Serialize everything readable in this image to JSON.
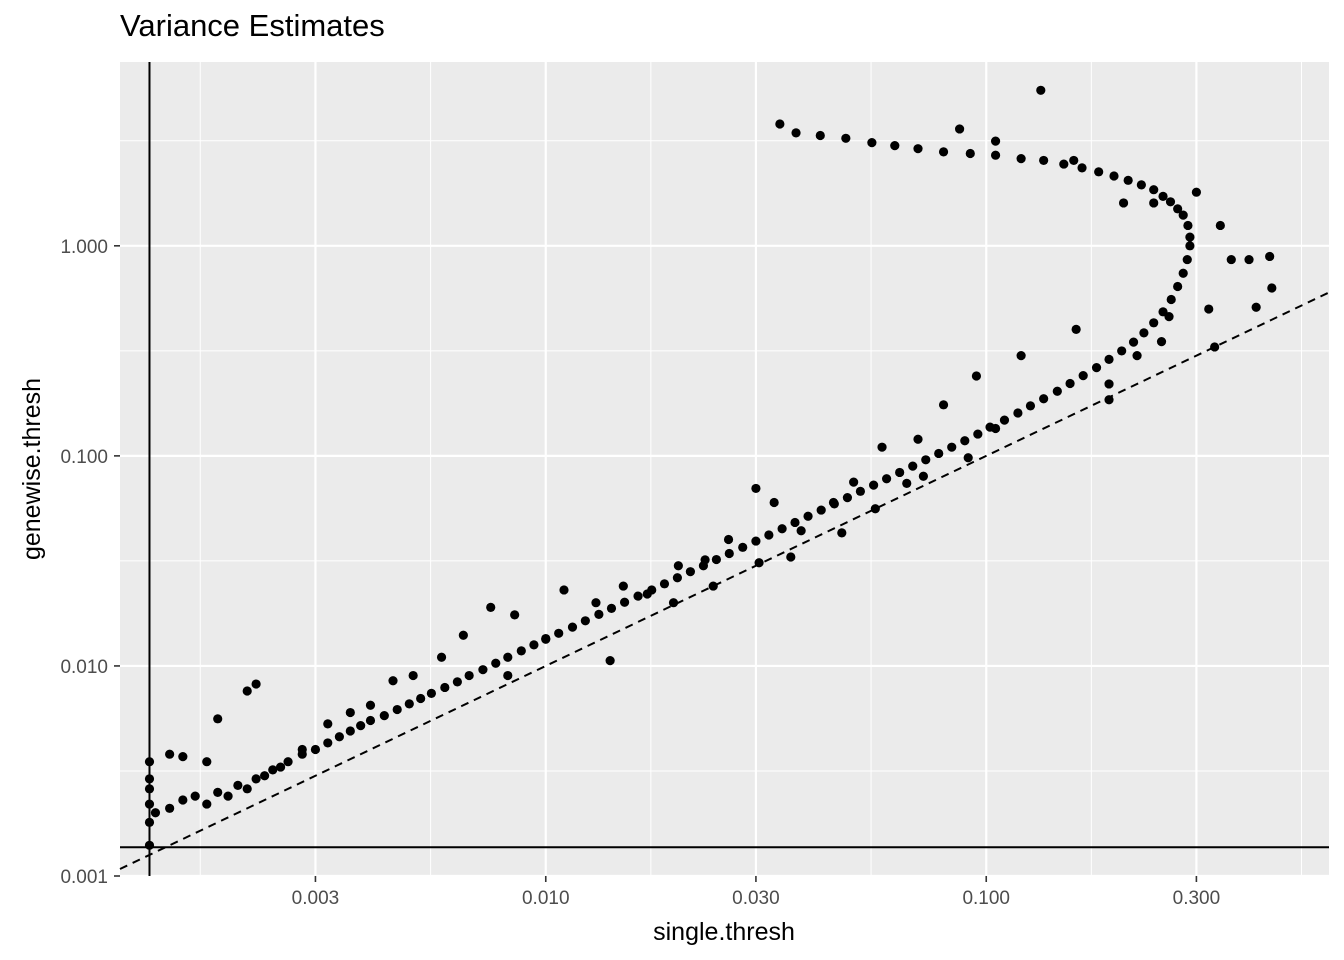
{
  "chart_data": {
    "type": "scatter",
    "title": "Variance Estimates",
    "xlabel": "single.thresh",
    "ylabel": "genewise.thresh",
    "x_scale": "log10",
    "y_scale": "log10",
    "xlim": [
      0.00108,
      0.6
    ],
    "ylim": [
      0.001,
      7.5
    ],
    "x_ticks": [
      0.003,
      0.01,
      0.03,
      0.1,
      0.3
    ],
    "x_tick_labels": [
      "0.003",
      "0.010",
      "0.030",
      "0.100",
      "0.300"
    ],
    "y_ticks": [
      0.001,
      0.01,
      0.1,
      1.0
    ],
    "y_tick_labels": [
      "0.001",
      "0.010",
      "0.100",
      "1.000"
    ],
    "grid": true,
    "reference_lines": {
      "vline_x": 0.00126,
      "hline_y": 0.00137,
      "identity_dashed": true
    },
    "series": [
      {
        "values": [
          [
            0.00126,
            0.0014
          ],
          [
            0.00126,
            0.0018
          ],
          [
            0.00126,
            0.0022
          ],
          [
            0.00126,
            0.0026
          ],
          [
            0.00126,
            0.0029
          ],
          [
            0.00126,
            0.0035
          ],
          [
            0.0013,
            0.002
          ],
          [
            0.0014,
            0.0021
          ],
          [
            0.0015,
            0.0023
          ],
          [
            0.0016,
            0.0024
          ],
          [
            0.0017,
            0.0022
          ],
          [
            0.0018,
            0.0025
          ],
          [
            0.0019,
            0.0024
          ],
          [
            0.002,
            0.0027
          ],
          [
            0.0021,
            0.0026
          ],
          [
            0.0022,
            0.0029
          ],
          [
            0.0023,
            0.003
          ],
          [
            0.0024,
            0.0032
          ],
          [
            0.0025,
            0.0033
          ],
          [
            0.0026,
            0.0035
          ],
          [
            0.0028,
            0.0038
          ],
          [
            0.003,
            0.004
          ],
          [
            0.0032,
            0.0043
          ],
          [
            0.0034,
            0.0046
          ],
          [
            0.0036,
            0.0049
          ],
          [
            0.0038,
            0.0052
          ],
          [
            0.004,
            0.0055
          ],
          [
            0.0043,
            0.0058
          ],
          [
            0.0046,
            0.0062
          ],
          [
            0.0049,
            0.0066
          ],
          [
            0.0052,
            0.007
          ],
          [
            0.0055,
            0.0074
          ],
          [
            0.0059,
            0.0079
          ],
          [
            0.0063,
            0.0084
          ],
          [
            0.0067,
            0.009
          ],
          [
            0.0072,
            0.0096
          ],
          [
            0.0077,
            0.0103
          ],
          [
            0.0082,
            0.011
          ],
          [
            0.0088,
            0.0118
          ],
          [
            0.0094,
            0.0126
          ],
          [
            0.01,
            0.0134
          ],
          [
            0.0107,
            0.0143
          ],
          [
            0.0115,
            0.0153
          ],
          [
            0.0123,
            0.0164
          ],
          [
            0.0132,
            0.0176
          ],
          [
            0.0141,
            0.0188
          ],
          [
            0.0151,
            0.0201
          ],
          [
            0.0162,
            0.0215
          ],
          [
            0.0174,
            0.023
          ],
          [
            0.0186,
            0.0246
          ],
          [
            0.0199,
            0.0263
          ],
          [
            0.0213,
            0.0281
          ],
          [
            0.0228,
            0.03
          ],
          [
            0.0244,
            0.0321
          ],
          [
            0.0261,
            0.0343
          ],
          [
            0.028,
            0.0367
          ],
          [
            0.03,
            0.0393
          ],
          [
            0.0321,
            0.042
          ],
          [
            0.0344,
            0.045
          ],
          [
            0.0368,
            0.0482
          ],
          [
            0.0394,
            0.0516
          ],
          [
            0.0422,
            0.0552
          ],
          [
            0.0452,
            0.0591
          ],
          [
            0.0484,
            0.0633
          ],
          [
            0.0518,
            0.0678
          ],
          [
            0.0555,
            0.0726
          ],
          [
            0.0594,
            0.0778
          ],
          [
            0.0636,
            0.0834
          ],
          [
            0.0681,
            0.0894
          ],
          [
            0.0729,
            0.0958
          ],
          [
            0.078,
            0.1027
          ],
          [
            0.0835,
            0.11
          ],
          [
            0.0894,
            0.118
          ],
          [
            0.0957,
            0.127
          ],
          [
            0.102,
            0.137
          ],
          [
            0.11,
            0.148
          ],
          [
            0.118,
            0.16
          ],
          [
            0.126,
            0.173
          ],
          [
            0.135,
            0.187
          ],
          [
            0.145,
            0.203
          ],
          [
            0.155,
            0.221
          ],
          [
            0.166,
            0.241
          ],
          [
            0.178,
            0.263
          ],
          [
            0.19,
            0.288
          ],
          [
            0.203,
            0.316
          ],
          [
            0.216,
            0.348
          ],
          [
            0.228,
            0.385
          ],
          [
            0.24,
            0.43
          ],
          [
            0.252,
            0.485
          ],
          [
            0.263,
            0.555
          ],
          [
            0.272,
            0.64
          ],
          [
            0.28,
            0.74
          ],
          [
            0.286,
            0.86
          ],
          [
            0.29,
            1.0
          ],
          [
            0.29,
            1.1
          ],
          [
            0.287,
            1.25
          ],
          [
            0.28,
            1.4
          ],
          [
            0.272,
            1.5
          ],
          [
            0.262,
            1.62
          ],
          [
            0.252,
            1.72
          ],
          [
            0.24,
            1.85
          ],
          [
            0.225,
            1.95
          ],
          [
            0.21,
            2.05
          ],
          [
            0.195,
            2.15
          ],
          [
            0.18,
            2.25
          ],
          [
            0.165,
            2.35
          ],
          [
            0.15,
            2.45
          ],
          [
            0.135,
            2.55
          ],
          [
            0.12,
            2.6
          ],
          [
            0.105,
            2.7
          ],
          [
            0.092,
            2.75
          ],
          [
            0.08,
            2.8
          ],
          [
            0.07,
            2.9
          ],
          [
            0.062,
            3.0
          ],
          [
            0.055,
            3.1
          ],
          [
            0.048,
            3.25
          ],
          [
            0.042,
            3.35
          ],
          [
            0.037,
            3.45
          ],
          [
            0.034,
            3.8
          ],
          [
            0.133,
            5.5
          ],
          [
            0.087,
            3.6
          ],
          [
            0.105,
            3.15
          ],
          [
            0.158,
            2.55
          ],
          [
            0.205,
            1.6
          ],
          [
            0.24,
            1.6
          ],
          [
            0.3,
            1.8
          ],
          [
            0.34,
            1.25
          ],
          [
            0.36,
            0.86
          ],
          [
            0.395,
            0.86
          ],
          [
            0.44,
            0.89
          ],
          [
            0.445,
            0.63
          ],
          [
            0.41,
            0.51
          ],
          [
            0.32,
            0.5
          ],
          [
            0.33,
            0.33
          ],
          [
            0.26,
            0.46
          ],
          [
            0.22,
            0.3
          ],
          [
            0.19,
            0.22
          ],
          [
            0.16,
            0.4
          ],
          [
            0.12,
            0.3
          ],
          [
            0.095,
            0.24
          ],
          [
            0.08,
            0.175
          ],
          [
            0.07,
            0.12
          ],
          [
            0.058,
            0.11
          ],
          [
            0.05,
            0.075
          ],
          [
            0.045,
            0.06
          ],
          [
            0.038,
            0.044
          ],
          [
            0.033,
            0.06
          ],
          [
            0.03,
            0.07
          ],
          [
            0.026,
            0.04
          ],
          [
            0.023,
            0.032
          ],
          [
            0.02,
            0.03
          ],
          [
            0.017,
            0.022
          ],
          [
            0.015,
            0.024
          ],
          [
            0.013,
            0.02
          ],
          [
            0.011,
            0.023
          ],
          [
            0.01,
            0.0135
          ],
          [
            0.0085,
            0.0175
          ],
          [
            0.0075,
            0.019
          ],
          [
            0.0065,
            0.014
          ],
          [
            0.0058,
            0.011
          ],
          [
            0.005,
            0.009
          ],
          [
            0.0045,
            0.0085
          ],
          [
            0.004,
            0.0065
          ],
          [
            0.0036,
            0.006
          ],
          [
            0.0032,
            0.0053
          ],
          [
            0.0028,
            0.004
          ],
          [
            0.0022,
            0.0082
          ],
          [
            0.0021,
            0.0076
          ],
          [
            0.0018,
            0.0056
          ],
          [
            0.0015,
            0.0037
          ],
          [
            0.0014,
            0.0038
          ],
          [
            0.0017,
            0.0035
          ],
          [
            0.014,
            0.0106
          ],
          [
            0.024,
            0.024
          ],
          [
            0.036,
            0.033
          ],
          [
            0.047,
            0.043
          ],
          [
            0.056,
            0.056
          ],
          [
            0.072,
            0.08
          ],
          [
            0.091,
            0.098
          ],
          [
            0.19,
            0.185
          ],
          [
            0.25,
            0.35
          ],
          [
            0.105,
            0.135
          ],
          [
            0.066,
            0.074
          ],
          [
            0.0305,
            0.031
          ],
          [
            0.0195,
            0.02
          ],
          [
            0.0082,
            0.009
          ]
        ]
      }
    ]
  }
}
